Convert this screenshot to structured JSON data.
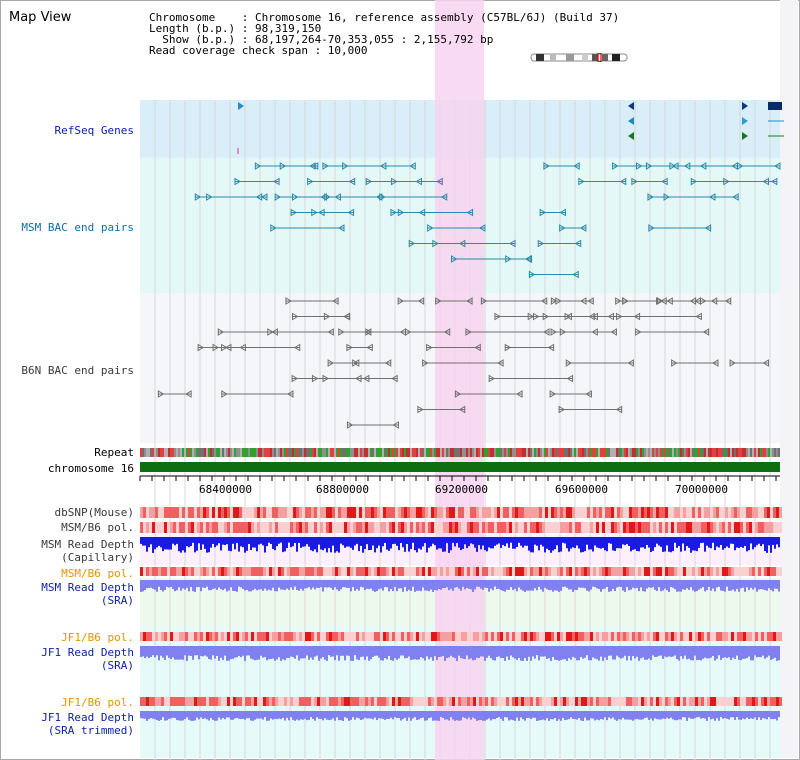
{
  "title": "Map View",
  "info": {
    "line1": "Chromosome    : Chromosome 16, reference assembly (C57BL/6J) (Build 37)",
    "line2": "Length (b.p.) : 98,319,150",
    "line3": "  Show (b.p.) : 68,197,264-70,353,055 : 2,155,792 bp",
    "line4": "Read coverage check span : 10,000"
  },
  "tracks": {
    "refseq": "RefSeq Genes",
    "msm_bac": "MSM BAC end pairs",
    "b6n_bac": "B6N BAC end pairs",
    "repeat": "Repeat",
    "chromosome": "chromosome 16",
    "dbsnp": "dbSNP(Mouse)",
    "msm_b6_pol_1": "MSM/B6 pol.",
    "msm_depth_cap_1": "MSM Read Depth",
    "msm_depth_cap_2": "(Capillary)",
    "msm_b6_pol_2": "MSM/B6 pol.",
    "msm_depth_sra_1": "MSM Read Depth",
    "msm_depth_sra_2": "(SRA)",
    "jf1_pol_1": "JF1/B6 pol.",
    "jf1_depth_sra_1": "JF1 Read Depth",
    "jf1_depth_sra_2": "(SRA)",
    "jf1_pol_2": "JF1/B6 pol.",
    "jf1_depth_trim_1": "JF1 Read Depth",
    "jf1_depth_trim_2": "(SRA trimmed)"
  },
  "axis_ticks": [
    "68400000",
    "68800000",
    "69200000",
    "69600000",
    "70000000"
  ],
  "colors": {
    "highlight": "#f7d4f0",
    "refseq_bg": "#d9eef8",
    "msm_bg": "#e4f8f8",
    "b6n_bg": "#f4f6f9",
    "chromosome": "#0f6e0f",
    "depth_capillary": "#1a1ae6",
    "depth_sra": "#8080f0",
    "msm_feature": "#2a8aa8",
    "b6n_feature": "#707070"
  }
}
